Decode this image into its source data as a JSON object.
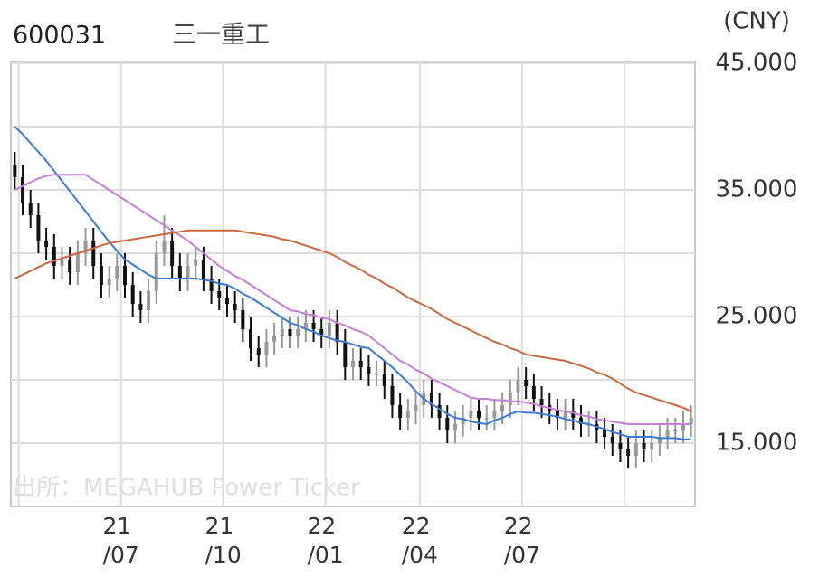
{
  "chart_data": {
    "type": "candlestick",
    "title": "600031",
    "subtitle": "三一重工",
    "y_axis_label": "(CNY)",
    "annotation": "出所：MEGAHUB Power Ticker",
    "ylim": [
      10,
      45
    ],
    "yticks": [
      {
        "value": 15,
        "label": "15.000"
      },
      {
        "value": 20,
        "label": null
      },
      {
        "value": 25,
        "label": "25.000"
      },
      {
        "value": 30,
        "label": null
      },
      {
        "value": 35,
        "label": "35.000"
      },
      {
        "value": 40,
        "label": null
      },
      {
        "value": 45,
        "label": "45.000"
      }
    ],
    "xlim": [
      0,
      87
    ],
    "xticks": [
      {
        "value": 1,
        "label": null
      },
      {
        "value": 14,
        "label": "21\n/07"
      },
      {
        "value": 27,
        "label": "21\n/10"
      },
      {
        "value": 40,
        "label": "22\n/01"
      },
      {
        "value": 52,
        "label": "22\n/04"
      },
      {
        "value": 65,
        "label": "22\n/07"
      },
      {
        "value": 78,
        "label": null
      }
    ],
    "grid": true,
    "up_color": "#999999",
    "down_color": "#111111",
    "open": [
      37,
      36,
      34,
      33,
      31,
      30.5,
      29,
      29.5,
      28.5,
      30,
      31,
      29,
      27.5,
      28,
      29,
      27.5,
      26,
      25.5,
      27,
      30,
      31,
      29,
      28,
      29,
      29.5,
      28,
      27,
      26.5,
      26,
      25.5,
      24,
      22.5,
      22,
      23,
      23.5,
      24,
      23.5,
      24,
      24.5,
      24,
      23.5,
      24.5,
      23,
      21,
      21.5,
      21,
      20.5,
      20.5,
      19.5,
      18,
      17,
      17.5,
      18,
      19,
      18,
      17,
      16,
      16.5,
      17,
      17.5,
      17,
      17,
      17.5,
      18,
      19,
      20,
      19.5,
      18.5,
      18,
      17.5,
      17,
      17.5,
      17,
      16.5,
      16.5,
      16,
      15.5,
      15,
      14.5,
      14,
      15,
      14.5,
      15,
      15.5,
      16,
      16,
      16.5
    ],
    "high": [
      38,
      37,
      35,
      34,
      32,
      31.5,
      30.5,
      30.5,
      31,
      32,
      32,
      30,
      29,
      30,
      30,
      28.5,
      27,
      28,
      31,
      33,
      32,
      30,
      30,
      30.5,
      30.5,
      29,
      28,
      27.5,
      27,
      26.5,
      25,
      23.5,
      24,
      24.5,
      25,
      25,
      25,
      25.5,
      25.5,
      25,
      25.5,
      25.5,
      24,
      22.5,
      22.5,
      22,
      21.5,
      21.5,
      20.5,
      19,
      18.5,
      19,
      20,
      20,
      19,
      18,
      17.5,
      18,
      18.5,
      18.5,
      18,
      18.5,
      19,
      20,
      21,
      21,
      20.5,
      19.5,
      19,
      18.5,
      18.5,
      18.5,
      18,
      17.5,
      17.5,
      17,
      16.5,
      16,
      15.5,
      16,
      16,
      16,
      16.5,
      17,
      17,
      17.5,
      18
    ],
    "low": [
      35,
      33,
      32,
      30,
      29.5,
      28,
      28,
      27.5,
      27.5,
      29,
      28,
      26.5,
      26.5,
      27,
      26.5,
      25,
      24.5,
      24.5,
      26,
      29,
      28,
      27,
      27,
      28,
      27,
      26,
      25.5,
      25,
      24.5,
      23,
      21.5,
      21,
      21,
      22,
      22.5,
      22.5,
      22.5,
      23,
      23,
      22.5,
      22.5,
      22,
      20,
      20,
      20,
      19.5,
      19.5,
      18.5,
      17,
      16,
      16,
      16.5,
      17,
      17,
      16,
      15,
      15,
      15.5,
      16,
      16,
      16,
      16,
      16.5,
      17,
      18,
      18.5,
      17.5,
      17,
      16.5,
      16,
      16,
      16,
      15.5,
      15.5,
      15,
      14.5,
      14,
      13.5,
      13,
      13,
      13.5,
      13.5,
      14,
      14.5,
      15,
      15,
      15.5
    ],
    "close": [
      36,
      34,
      33,
      31,
      30.5,
      29,
      29.5,
      28.5,
      30,
      31,
      29,
      27.5,
      28,
      29,
      27.5,
      26,
      25.5,
      27,
      30,
      31,
      29,
      28,
      29,
      29.5,
      28,
      27,
      26.5,
      26,
      25.5,
      24,
      22.5,
      22,
      23,
      23.5,
      24,
      23.5,
      24,
      24.5,
      24,
      23.5,
      24.5,
      23,
      21,
      21.5,
      21,
      20.5,
      20.5,
      19.5,
      18,
      17,
      17.5,
      18,
      19,
      18,
      17,
      16,
      16.5,
      17,
      17.5,
      17,
      17,
      17.5,
      18,
      19,
      20,
      19.5,
      18.5,
      18,
      17.5,
      17,
      17.5,
      17,
      16.5,
      16.5,
      16,
      15.5,
      15,
      14.5,
      14,
      15,
      14.5,
      15,
      15.5,
      16,
      16,
      16.5,
      17
    ],
    "series": [
      {
        "color": "#3a7bd5",
        "values": [
          40,
          39.4,
          38.7,
          38,
          37.3,
          36.5,
          35.7,
          34.9,
          34.1,
          33.3,
          32.5,
          31.7,
          30.9,
          30.2,
          29.5,
          29.1,
          28.7,
          28.3,
          28,
          28,
          28,
          28,
          28,
          28,
          27.9,
          27.8,
          27.6,
          27.5,
          27.2,
          26.8,
          26.5,
          26.1,
          25.7,
          25.3,
          24.9,
          24.5,
          24.3,
          24,
          23.8,
          23.5,
          23.3,
          23.1,
          23,
          22.8,
          22.6,
          22.5,
          22,
          21.5,
          21,
          20.4,
          19.8,
          19.1,
          18.5,
          18.1,
          17.7,
          17.3,
          17,
          16.9,
          16.7,
          16.6,
          16.5,
          16.8,
          17,
          17.3,
          17.5,
          17.4,
          17.4,
          17.3,
          17.2,
          17.1,
          16.9,
          16.8,
          16.6,
          16.5,
          16.3,
          16.1,
          15.9,
          15.7,
          15.5,
          15.5,
          15.5,
          15.5,
          15.4,
          15.4,
          15.4,
          15.3,
          15.3
        ]
      },
      {
        "color": "#c77ed6",
        "values": [
          35,
          35.3,
          35.6,
          35.9,
          36.1,
          36.2,
          36.2,
          36.2,
          36.2,
          36.2,
          35.8,
          35.4,
          35,
          34.6,
          34.2,
          33.8,
          33.4,
          33,
          32.6,
          32.2,
          31.8,
          31.4,
          31,
          30.5,
          30,
          29.5,
          29,
          28.6,
          28.2,
          27.9,
          27.5,
          27.1,
          26.7,
          26.3,
          25.9,
          25.5,
          25.4,
          25.2,
          25.1,
          24.9,
          24.8,
          24.5,
          24.3,
          24,
          23.8,
          23.5,
          23,
          22.5,
          22,
          21.5,
          21.2,
          20.8,
          20.5,
          20.1,
          19.8,
          19.5,
          19.2,
          18.9,
          18.6,
          18.5,
          18.5,
          18.4,
          18.4,
          18.3,
          18.3,
          18.2,
          18.1,
          17.9,
          17.8,
          17.6,
          17.5,
          17.4,
          17.2,
          17.1,
          16.9,
          16.8,
          16.7,
          16.6,
          16.5,
          16.5,
          16.5,
          16.5,
          16.5,
          16.5,
          16.5,
          16.5,
          16.5
        ]
      },
      {
        "color": "#c8683f",
        "values": [
          28,
          28.3,
          28.6,
          28.9,
          29.2,
          29.4,
          29.6,
          29.8,
          30,
          30.2,
          30.4,
          30.6,
          30.8,
          30.9,
          31,
          31.1,
          31.2,
          31.3,
          31.4,
          31.5,
          31.6,
          31.7,
          31.8,
          31.8,
          31.8,
          31.8,
          31.8,
          31.8,
          31.8,
          31.7,
          31.6,
          31.5,
          31.4,
          31.3,
          31.1,
          31,
          30.8,
          30.6,
          30.4,
          30.2,
          30,
          29.7,
          29.3,
          29,
          28.7,
          28.3,
          28,
          27.6,
          27.3,
          26.9,
          26.5,
          26.2,
          25.9,
          25.6,
          25.2,
          24.8,
          24.5,
          24.2,
          23.9,
          23.6,
          23.3,
          23,
          22.8,
          22.5,
          22.3,
          22,
          21.9,
          21.8,
          21.7,
          21.6,
          21.5,
          21.3,
          21.1,
          20.9,
          20.6,
          20.4,
          20.1,
          19.7,
          19.3,
          19,
          18.8,
          18.6,
          18.4,
          18.2,
          18,
          17.8,
          17.5
        ]
      }
    ]
  }
}
